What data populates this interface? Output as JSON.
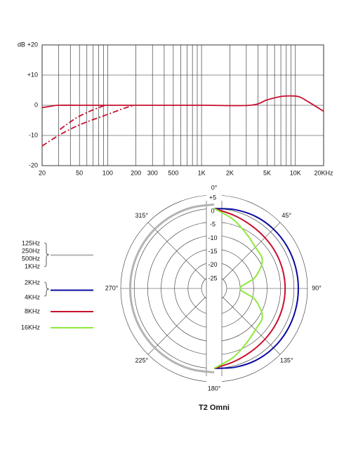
{
  "chart_data": [
    {
      "type": "line",
      "log_x": true,
      "y_label": "dB",
      "xlim": [
        20,
        20000
      ],
      "ylim": [
        -20,
        20
      ],
      "xticks": [
        20,
        50,
        100,
        200,
        300,
        500,
        {
          "value": 1000,
          "label": "1K"
        },
        {
          "value": 2000,
          "label": "2K"
        },
        {
          "value": 5000,
          "label": "5K"
        },
        {
          "value": 10000,
          "label": "10K"
        },
        {
          "value": 20000,
          "label": "20KHz"
        }
      ],
      "xgrid": [
        30,
        40,
        60,
        70,
        80,
        90,
        400,
        600,
        700,
        800,
        900,
        3000,
        4000,
        6000,
        7000,
        8000,
        9000
      ],
      "yticks": [
        {
          "value": 20,
          "label": "+20"
        },
        {
          "value": 10,
          "label": "+10"
        },
        0,
        -10,
        -20
      ],
      "grid": true,
      "series": [
        {
          "color": "#c8102e",
          "dash": false,
          "x": [
            20,
            25,
            30,
            50,
            100,
            1000,
            3300,
            5000,
            7000,
            9000,
            11000,
            14000,
            20000
          ],
          "values": [
            -0.8,
            -0.3,
            0,
            0,
            0,
            0,
            0,
            1.8,
            2.9,
            3.1,
            2.8,
            1,
            -2
          ]
        },
        {
          "color": "#c8102e",
          "dash": true,
          "x": [
            31,
            40,
            50,
            70,
            94
          ],
          "values": [
            -8,
            -5.5,
            -3.6,
            -1.5,
            0
          ]
        },
        {
          "color": "#c8102e",
          "dash": true,
          "x": [
            20,
            30,
            50,
            100,
            150,
            190
          ],
          "values": [
            -13.5,
            -10,
            -6.5,
            -3,
            -1,
            0
          ]
        }
      ]
    },
    {
      "type": "polar",
      "title": "T2 Omni",
      "rlim": [
        -25,
        5
      ],
      "rticks": [
        {
          "value": 5,
          "label": "+5"
        },
        0,
        -5,
        -10,
        -15,
        -20,
        -25
      ],
      "thetaticks": [
        {
          "value": 0,
          "label": "0°"
        },
        {
          "value": 45,
          "label": "45°"
        },
        {
          "value": 90,
          "label": "90°"
        },
        {
          "value": 135,
          "label": "135°"
        },
        {
          "value": 180,
          "label": "180°"
        },
        {
          "value": 225,
          "label": "225°"
        },
        {
          "value": 270,
          "label": "270°"
        },
        {
          "value": 315,
          "label": "315°"
        }
      ],
      "series": [
        {
          "names": [
            "125Hz",
            "250Hz",
            "500Hz",
            "1KHz"
          ],
          "color": "#b3b3b3",
          "theta": [
            180,
            195,
            210,
            225,
            240,
            255,
            270,
            285,
            300,
            315,
            330,
            345,
            360
          ],
          "values": [
            1.5,
            1.5,
            1.5,
            1.5,
            1.5,
            1.5,
            1.5,
            1.5,
            1.5,
            1.5,
            1.5,
            1.5,
            1.5
          ]
        },
        {
          "names": [
            "2KHz",
            "4KHz"
          ],
          "color": "#0a0aa0",
          "theta": [
            0,
            15,
            30,
            45,
            60,
            75,
            90,
            105,
            120,
            135,
            150,
            165,
            180
          ],
          "values": [
            0,
            0.6,
            1.2,
            1.5,
            1.6,
            1.6,
            1.6,
            1.6,
            1.6,
            1.5,
            1.2,
            0.6,
            0
          ]
        },
        {
          "names": [
            "8KHz"
          ],
          "color": "#c8102e",
          "theta": [
            0,
            15,
            30,
            45,
            60,
            75,
            90,
            105,
            120,
            135,
            150,
            165,
            180
          ],
          "values": [
            0,
            -1.5,
            -2.5,
            -3,
            -3.2,
            -3.3,
            -3.3,
            -3.3,
            -3.2,
            -3,
            -2.5,
            -1.5,
            0
          ]
        },
        {
          "names": [
            "16KHz"
          ],
          "color": "#8fe83a",
          "theta": [
            0,
            15,
            30,
            45,
            60,
            75,
            90,
            105,
            120,
            135,
            150,
            165,
            180
          ],
          "values": [
            0,
            -3,
            -6,
            -8,
            -9,
            -14,
            -20,
            -14,
            -9,
            -8,
            -6,
            -3,
            0
          ]
        }
      ]
    }
  ]
}
